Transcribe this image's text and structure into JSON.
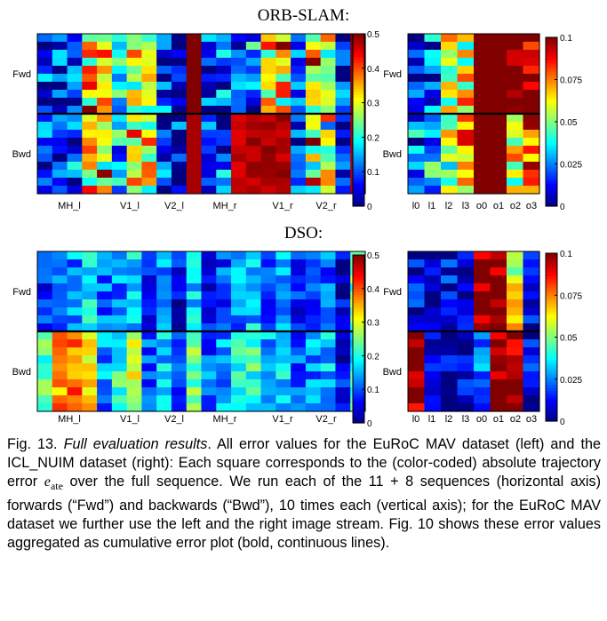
{
  "titles": {
    "orb": "ORB-SLAM:",
    "dso": "DSO:"
  },
  "colors": {
    "colormap": "jet",
    "separator": "#000000"
  },
  "chart_data": [
    {
      "type": "heatmap",
      "title": "ORB-SLAM:",
      "panel": "EuRoC MAV",
      "row_groups": [
        "Fwd",
        "Bwd"
      ],
      "rows_per_group": 10,
      "streams": [
        "l",
        "r"
      ],
      "sequences_per_stream": 11,
      "x_tick_labels": [
        "MH_l",
        "V1_l",
        "V2_l",
        "MH_r",
        "V1_r",
        "V2_r"
      ],
      "colorbar_ticks": [
        "0",
        "0.1",
        "0.2",
        "0.3",
        "0.4",
        "0.5"
      ],
      "zlim": [
        0,
        0.5
      ],
      "generation_base": 0.12,
      "values": [
        [
          0.08,
          0.05,
          0.1,
          0.32,
          0.3,
          0.15,
          0.32,
          0.25,
          0.08,
          0.04,
          0.5,
          0.1,
          0.05,
          0.06,
          0.09,
          0.35,
          0.3,
          0.1,
          0.28,
          0.32,
          0.06,
          0.2
        ],
        [
          0.07,
          0.06,
          0.12,
          0.38,
          0.28,
          0.12,
          0.2,
          0.3,
          0.07,
          0.05,
          0.5,
          0.06,
          0.04,
          0.1,
          0.18,
          0.4,
          0.45,
          0.08,
          0.25,
          0.22,
          0.07,
          0.15
        ],
        [
          0.1,
          0.09,
          0.05,
          0.35,
          0.4,
          0.2,
          0.35,
          0.35,
          0.1,
          0.06,
          0.5,
          0.08,
          0.2,
          0.05,
          0.1,
          0.28,
          0.33,
          0.12,
          0.3,
          0.28,
          0.08,
          0.18
        ],
        [
          0.06,
          0.1,
          0.06,
          0.3,
          0.3,
          0.18,
          0.3,
          0.4,
          0.06,
          0.04,
          0.5,
          0.12,
          0.05,
          0.06,
          0.15,
          0.42,
          0.28,
          0.06,
          0.4,
          0.35,
          0.05,
          0.22
        ],
        [
          0.05,
          0.07,
          0.08,
          0.4,
          0.35,
          0.15,
          0.25,
          0.28,
          0.09,
          0.07,
          0.5,
          0.07,
          0.06,
          0.08,
          0.08,
          0.38,
          0.4,
          0.1,
          0.22,
          0.3,
          0.06,
          0.12
        ]
      ]
    },
    {
      "type": "heatmap",
      "title": "ORB-SLAM:",
      "panel": "ICL_NUIM",
      "row_groups": [
        "Fwd",
        "Bwd"
      ],
      "rows_per_group": 10,
      "x_tick_labels": [
        "l0",
        "l1",
        "l2",
        "l3",
        "o0",
        "o1",
        "o2",
        "o3"
      ],
      "colorbar_ticks": [
        "0",
        "0.025",
        "0.05",
        "0.075",
        "0.1"
      ],
      "zlim": [
        0,
        0.1
      ],
      "column_levels": [
        0.01,
        0.02,
        0.06,
        0.06,
        0.1,
        0.1,
        0.1,
        0.1
      ],
      "bwd_column_levels": [
        0.02,
        0.03,
        0.05,
        0.07,
        0.1,
        0.1,
        0.06,
        0.08
      ]
    },
    {
      "type": "heatmap",
      "title": "DSO:",
      "panel": "EuRoC MAV",
      "row_groups": [
        "Fwd",
        "Bwd"
      ],
      "rows_per_group": 10,
      "x_tick_labels": [
        "MH_l",
        "V1_l",
        "V2_l",
        "MH_r",
        "V1_r",
        "V2_r"
      ],
      "colorbar_ticks": [
        "0",
        "0.1",
        "0.2",
        "0.3",
        "0.4",
        "0.5"
      ],
      "zlim": [
        0,
        0.5
      ],
      "fwd_column_levels": [
        0.08,
        0.1,
        0.12,
        0.18,
        0.1,
        0.12,
        0.15,
        0.05,
        0.12,
        0.04,
        0.15,
        0.06,
        0.08,
        0.12,
        0.15,
        0.1,
        0.12,
        0.06,
        0.08,
        0.1,
        0.04,
        0.22
      ],
      "bwd_column_levels": [
        0.2,
        0.35,
        0.38,
        0.3,
        0.12,
        0.2,
        0.28,
        0.08,
        0.15,
        0.08,
        0.22,
        0.1,
        0.12,
        0.18,
        0.2,
        0.14,
        0.16,
        0.1,
        0.12,
        0.14,
        0.05,
        0.18
      ]
    },
    {
      "type": "heatmap",
      "title": "DSO:",
      "panel": "ICL_NUIM",
      "row_groups": [
        "Fwd",
        "Bwd"
      ],
      "rows_per_group": 10,
      "x_tick_labels": [
        "l0",
        "l1",
        "l2",
        "l3",
        "o0",
        "o1",
        "o2",
        "o3"
      ],
      "colorbar_ticks": [
        "0",
        "0.025",
        "0.05",
        "0.075",
        "0.1"
      ],
      "zlim": [
        0,
        0.1
      ],
      "fwd_column_levels": [
        0.008,
        0.005,
        0.01,
        0.01,
        0.1,
        0.1,
        0.06,
        0.01
      ],
      "bwd_column_levels": [
        0.1,
        0.005,
        0.008,
        0.008,
        0.02,
        0.1,
        0.1,
        0.01
      ]
    }
  ],
  "caption": {
    "fig_label": "Fig. 13.",
    "emph": "Full evaluation results",
    "part1": ". All error values for the EuRoC MAV dataset (left) and the ICL_NUIM dataset (right): Each square corresponds to the (color-coded) absolute trajectory error ",
    "eate_main": "e",
    "eate_sub": "ate",
    "part2": " over the full sequence. We run each of the 11 + 8 sequences (horizontal axis) forwards (“Fwd”) and backwards (“Bwd”), 10 times each (vertical axis); for the EuRoC MAV dataset we further use the left and the right image stream. Fig. 10 shows these error values aggregated as cumulative error plot (bold, continuous lines)."
  }
}
